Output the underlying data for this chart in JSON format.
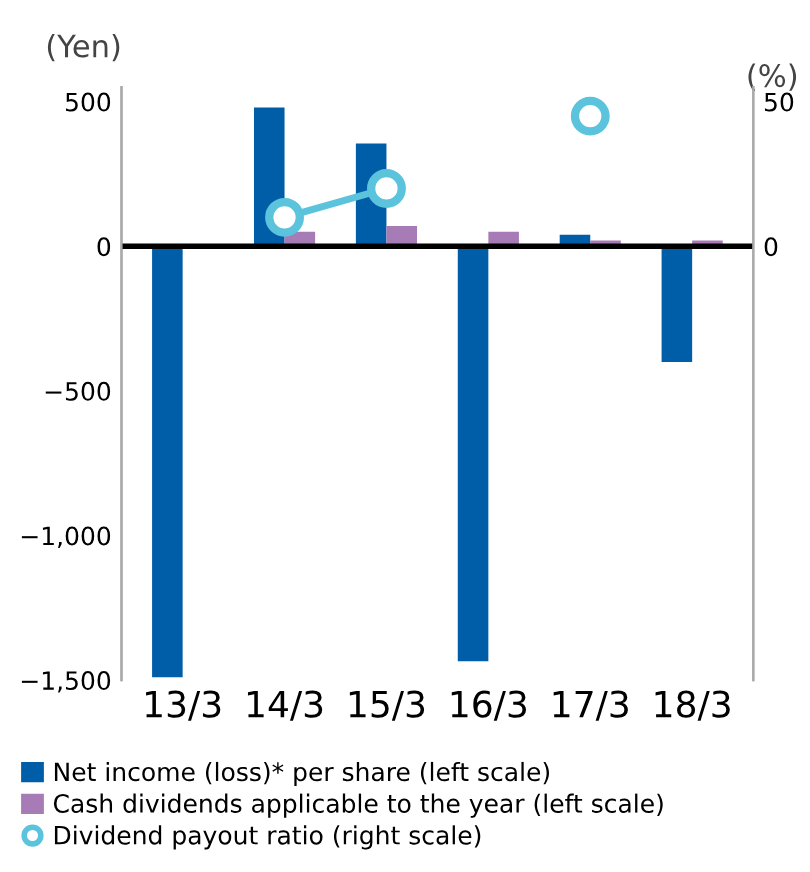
{
  "chart_data": {
    "type": "bar",
    "categories": [
      "13/3",
      "14/3",
      "15/3",
      "16/3",
      "17/3",
      "18/3"
    ],
    "ylabel": "(Yen)",
    "y2label": "(%)",
    "ylim": [
      -1500,
      550
    ],
    "yticks": [
      500,
      0,
      {
        "value": -500,
        "label": "−500"
      },
      {
        "value": -1000,
        "label": "−1,000"
      },
      {
        "value": -1500,
        "label": "−1,500"
      }
    ],
    "y2lim": [
      -150,
      55
    ],
    "y2ticks": [
      50,
      0
    ],
    "ref_lines": [
      {
        "axis": "y",
        "value": 0,
        "color": "#000000"
      }
    ],
    "grid": false,
    "legend": "bottom",
    "series": [
      {
        "name": "Net income (loss)* per share (left scale)",
        "color": "#005ea8",
        "values": [
          -1490,
          480,
          355,
          -1435,
          40,
          -400
        ]
      },
      {
        "name": "Cash dividends applicable to the year (left scale)",
        "color": "#a77bb5",
        "values": [
          null,
          50,
          70,
          50,
          20,
          20
        ]
      },
      {
        "name": "Dividend payout ratio (right scale)",
        "color": "#5bc3dc",
        "type": "line",
        "axis": "y2",
        "marker": "circle",
        "values": [
          null,
          10,
          20,
          null,
          45,
          null
        ]
      }
    ]
  }
}
